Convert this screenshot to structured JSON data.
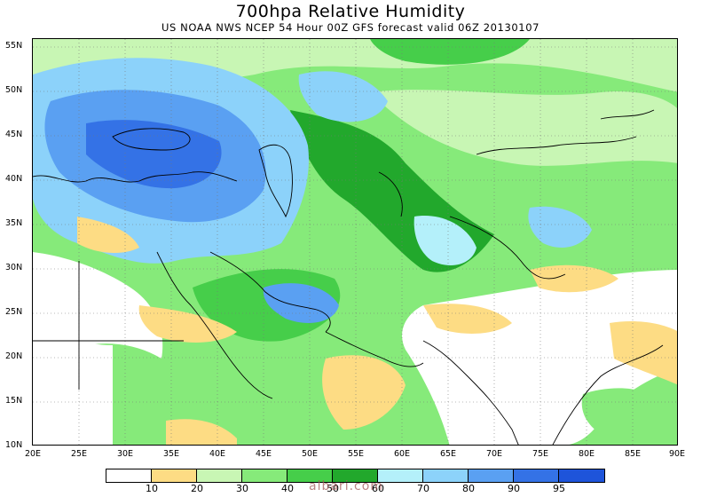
{
  "title": "700hpa Relative Humidity",
  "subtitle": "US NOAA NWS NCEP 54 Hour 00Z GFS forecast valid 06Z 20130107",
  "map": {
    "lat_labels": [
      "55N",
      "50N",
      "45N",
      "40N",
      "35N",
      "30N",
      "25N",
      "20N",
      "15N",
      "10N"
    ],
    "lon_labels": [
      "20E",
      "25E",
      "30E",
      "35E",
      "40E",
      "45E",
      "50E",
      "55E",
      "60E",
      "65E",
      "70E",
      "75E",
      "80E",
      "85E",
      "90E"
    ],
    "lat_values": [
      55,
      50,
      45,
      40,
      35,
      30,
      25,
      20,
      15,
      10
    ],
    "lon_values": [
      20,
      25,
      30,
      35,
      40,
      45,
      50,
      55,
      60,
      65,
      70,
      75,
      80,
      85,
      90
    ],
    "extent": {
      "lon_min": 20,
      "lon_max": 90,
      "lat_min": 10,
      "lat_max": 56
    },
    "field": "relative_humidity_700hpa",
    "units": "%"
  },
  "legend": {
    "labels": [
      "10",
      "20",
      "30",
      "40",
      "50",
      "60",
      "70",
      "80",
      "90",
      "95"
    ],
    "colors": [
      "#ffffff",
      "#fddc84",
      "#c8f6b4",
      "#86ea7a",
      "#46ce4a",
      "#22a82c",
      "#b4f0fa",
      "#8cd2fa",
      "#5aa0f2",
      "#3472e6",
      "#1e54da"
    ]
  },
  "watermark": "albari.com",
  "colors": {
    "dry": "#fddc84",
    "moist_light": "#c8f6b4",
    "moist": "#86ea7a",
    "moist_dark": "#22a82c",
    "wet_light": "#b4f0fa",
    "wet": "#5aa0f2",
    "wet_dark": "#1e54da"
  }
}
